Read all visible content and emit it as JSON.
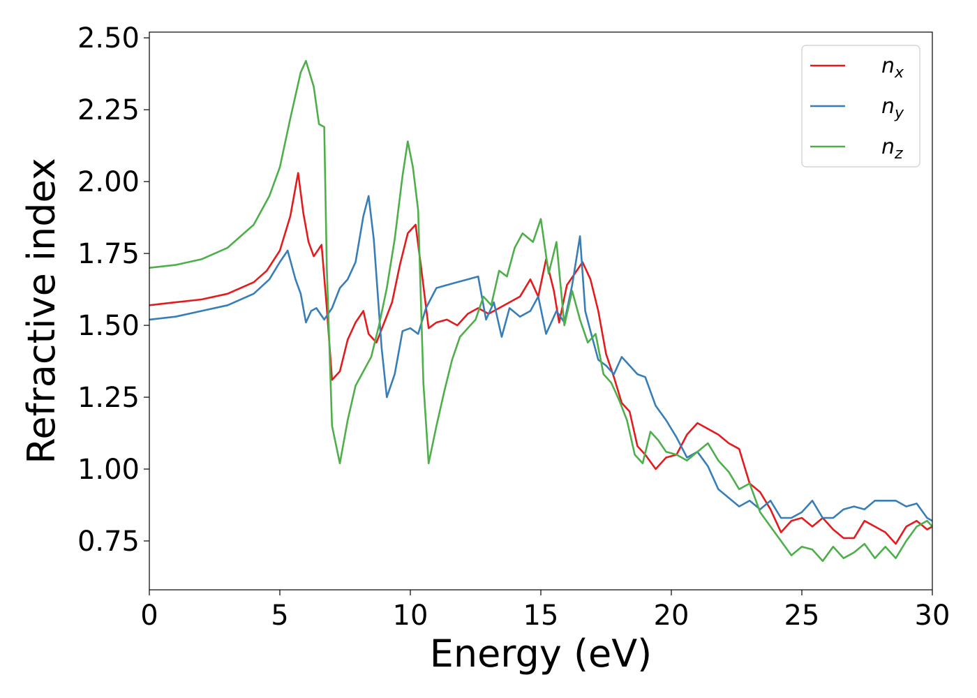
{
  "chart_data": {
    "type": "line",
    "title": "",
    "xlabel": "Energy (eV)",
    "ylabel": "Refractive index",
    "xlim": [
      0,
      30
    ],
    "ylim": [
      0.58,
      2.52
    ],
    "xticks": [
      0,
      5,
      10,
      15,
      20,
      25,
      30
    ],
    "xtick_labels": [
      "0",
      "5",
      "10",
      "15",
      "20",
      "25",
      "30"
    ],
    "yticks": [
      0.75,
      1.0,
      1.25,
      1.5,
      1.75,
      2.0,
      2.25,
      2.5
    ],
    "ytick_labels": [
      "0.75",
      "1.00",
      "1.25",
      "1.50",
      "1.75",
      "2.00",
      "2.25",
      "2.50"
    ],
    "grid": false,
    "legend_position": "top-right",
    "series": [
      {
        "name": "n_x",
        "label_base": "n",
        "label_sub": "x",
        "color": "#e41a1c",
        "x": [
          0,
          1,
          2,
          3,
          4,
          4.5,
          5,
          5.4,
          5.7,
          5.9,
          6.1,
          6.3,
          6.6,
          6.8,
          7.0,
          7.3,
          7.6,
          7.9,
          8.2,
          8.4,
          8.7,
          9.0,
          9.3,
          9.6,
          9.9,
          10.2,
          10.4,
          10.7,
          11.0,
          11.4,
          11.8,
          12.2,
          12.6,
          13.0,
          13.4,
          13.8,
          14.2,
          14.6,
          14.9,
          15.2,
          15.5,
          15.7,
          16.0,
          16.3,
          16.6,
          16.9,
          17.2,
          17.5,
          17.8,
          18.1,
          18.4,
          18.7,
          19.0,
          19.4,
          19.8,
          20.2,
          20.6,
          21.0,
          21.4,
          21.8,
          22.2,
          22.6,
          23.0,
          23.4,
          23.8,
          24.2,
          24.6,
          25.0,
          25.4,
          25.8,
          26.2,
          26.6,
          27.0,
          27.4,
          27.8,
          28.2,
          28.6,
          29.0,
          29.4,
          29.8,
          30.0
        ],
        "y": [
          1.57,
          1.58,
          1.59,
          1.61,
          1.65,
          1.69,
          1.76,
          1.88,
          2.03,
          1.89,
          1.79,
          1.74,
          1.78,
          1.56,
          1.31,
          1.34,
          1.45,
          1.51,
          1.55,
          1.47,
          1.44,
          1.51,
          1.58,
          1.71,
          1.82,
          1.85,
          1.71,
          1.49,
          1.51,
          1.52,
          1.5,
          1.54,
          1.56,
          1.54,
          1.56,
          1.58,
          1.6,
          1.66,
          1.6,
          1.73,
          1.62,
          1.51,
          1.64,
          1.68,
          1.72,
          1.66,
          1.55,
          1.4,
          1.32,
          1.23,
          1.2,
          1.08,
          1.05,
          1.0,
          1.04,
          1.05,
          1.12,
          1.16,
          1.14,
          1.12,
          1.09,
          1.07,
          0.95,
          0.92,
          0.86,
          0.78,
          0.82,
          0.83,
          0.8,
          0.83,
          0.79,
          0.76,
          0.76,
          0.82,
          0.8,
          0.78,
          0.74,
          0.8,
          0.82,
          0.79,
          0.8
        ]
      },
      {
        "name": "n_y",
        "label_base": "n",
        "label_sub": "y",
        "color": "#377eb8",
        "x": [
          0,
          1,
          2,
          3,
          4,
          4.6,
          5.0,
          5.3,
          5.6,
          5.8,
          6.0,
          6.2,
          6.4,
          6.7,
          7.0,
          7.3,
          7.6,
          7.9,
          8.2,
          8.4,
          8.6,
          8.9,
          9.1,
          9.4,
          9.7,
          10.0,
          10.3,
          10.6,
          11.0,
          11.4,
          11.8,
          12.2,
          12.6,
          12.9,
          13.2,
          13.5,
          13.8,
          14.2,
          14.6,
          14.9,
          15.2,
          15.6,
          15.9,
          16.2,
          16.5,
          16.7,
          16.9,
          17.2,
          17.5,
          17.8,
          18.1,
          18.4,
          18.7,
          19.0,
          19.4,
          19.8,
          20.2,
          20.6,
          21.0,
          21.4,
          21.8,
          22.2,
          22.6,
          23.0,
          23.4,
          23.8,
          24.2,
          24.6,
          25.0,
          25.4,
          25.8,
          26.2,
          26.6,
          27.0,
          27.4,
          27.8,
          28.2,
          28.6,
          29.0,
          29.4,
          29.8,
          30.0
        ],
        "y": [
          1.52,
          1.53,
          1.55,
          1.57,
          1.61,
          1.66,
          1.72,
          1.76,
          1.66,
          1.61,
          1.51,
          1.55,
          1.56,
          1.52,
          1.56,
          1.63,
          1.66,
          1.72,
          1.88,
          1.95,
          1.8,
          1.42,
          1.25,
          1.33,
          1.48,
          1.49,
          1.47,
          1.56,
          1.63,
          1.64,
          1.65,
          1.66,
          1.67,
          1.52,
          1.58,
          1.46,
          1.56,
          1.53,
          1.55,
          1.6,
          1.47,
          1.55,
          1.51,
          1.64,
          1.81,
          1.55,
          1.48,
          1.38,
          1.36,
          1.33,
          1.39,
          1.36,
          1.33,
          1.32,
          1.22,
          1.17,
          1.11,
          1.04,
          1.06,
          1.01,
          0.93,
          0.9,
          0.87,
          0.89,
          0.86,
          0.89,
          0.83,
          0.83,
          0.85,
          0.89,
          0.83,
          0.83,
          0.86,
          0.87,
          0.86,
          0.89,
          0.89,
          0.89,
          0.87,
          0.88,
          0.83,
          0.82
        ]
      },
      {
        "name": "n_z",
        "label_base": "n",
        "label_sub": "z",
        "color": "#4daf4a",
        "x": [
          0,
          1,
          2,
          3,
          4,
          4.6,
          5.0,
          5.4,
          5.8,
          6.0,
          6.3,
          6.5,
          6.7,
          6.8,
          7.0,
          7.3,
          7.6,
          7.9,
          8.2,
          8.5,
          8.8,
          9.1,
          9.4,
          9.7,
          9.9,
          10.1,
          10.3,
          10.5,
          10.7,
          11.0,
          11.3,
          11.6,
          11.9,
          12.2,
          12.5,
          12.8,
          13.1,
          13.4,
          13.7,
          14.0,
          14.3,
          14.7,
          15.0,
          15.3,
          15.6,
          15.9,
          16.2,
          16.5,
          16.8,
          17.1,
          17.4,
          17.7,
          18.0,
          18.3,
          18.6,
          18.9,
          19.2,
          19.5,
          19.8,
          20.2,
          20.6,
          21.0,
          21.4,
          21.8,
          22.2,
          22.6,
          23.0,
          23.4,
          23.8,
          24.2,
          24.6,
          25.0,
          25.4,
          25.8,
          26.2,
          26.6,
          27.0,
          27.4,
          27.8,
          28.2,
          28.6,
          29.0,
          29.4,
          29.8,
          30.0
        ],
        "y": [
          1.7,
          1.71,
          1.73,
          1.77,
          1.85,
          1.95,
          2.05,
          2.22,
          2.38,
          2.42,
          2.33,
          2.2,
          2.19,
          1.7,
          1.15,
          1.02,
          1.17,
          1.29,
          1.34,
          1.39,
          1.5,
          1.63,
          1.8,
          2.02,
          2.14,
          2.05,
          1.9,
          1.3,
          1.02,
          1.15,
          1.27,
          1.38,
          1.46,
          1.49,
          1.52,
          1.6,
          1.57,
          1.69,
          1.67,
          1.77,
          1.82,
          1.79,
          1.87,
          1.68,
          1.79,
          1.5,
          1.62,
          1.52,
          1.44,
          1.47,
          1.33,
          1.3,
          1.24,
          1.17,
          1.05,
          1.02,
          1.13,
          1.1,
          1.06,
          1.05,
          1.03,
          1.06,
          1.09,
          1.03,
          0.99,
          0.93,
          0.95,
          0.85,
          0.8,
          0.75,
          0.7,
          0.73,
          0.72,
          0.68,
          0.73,
          0.69,
          0.71,
          0.74,
          0.69,
          0.73,
          0.69,
          0.75,
          0.8,
          0.82,
          0.8
        ]
      }
    ]
  }
}
